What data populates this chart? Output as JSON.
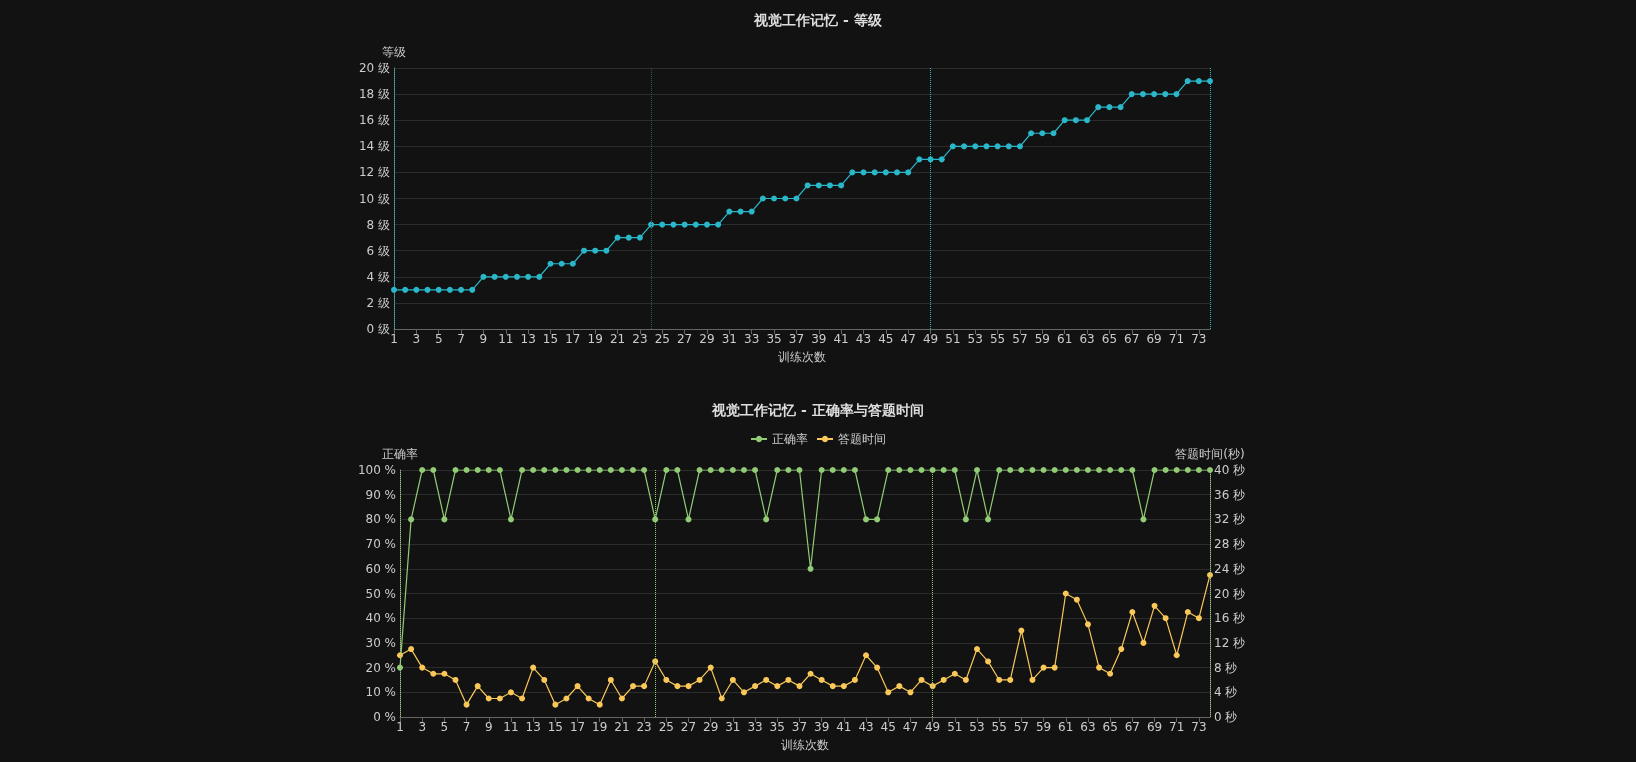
{
  "chart_data": [
    {
      "type": "line",
      "title": "视觉工作记忆 - 等级",
      "xlabel": "训练次数",
      "ylabel": "等级",
      "x": [
        1,
        2,
        3,
        4,
        5,
        6,
        7,
        8,
        9,
        10,
        11,
        12,
        13,
        14,
        15,
        16,
        17,
        18,
        19,
        20,
        21,
        22,
        23,
        24,
        25,
        26,
        27,
        28,
        29,
        30,
        31,
        32,
        33,
        34,
        35,
        36,
        37,
        38,
        39,
        40,
        41,
        42,
        43,
        44,
        45,
        46,
        47,
        48,
        49,
        50,
        51,
        52,
        53,
        54,
        55,
        56,
        57,
        58,
        59,
        60,
        61,
        62,
        63,
        64,
        65,
        66,
        67,
        68,
        69,
        70,
        71,
        72,
        73,
        74
      ],
      "series": [
        {
          "color": "#2ab7c9",
          "values": [
            3,
            3,
            3,
            3,
            3,
            3,
            3,
            3,
            4,
            4,
            4,
            4,
            4,
            4,
            5,
            5,
            5,
            6,
            6,
            6,
            7,
            7,
            7,
            8,
            8,
            8,
            8,
            8,
            8,
            8,
            9,
            9,
            9,
            10,
            10,
            10,
            10,
            11,
            11,
            11,
            11,
            12,
            12,
            12,
            12,
            12,
            12,
            13,
            13,
            13,
            14,
            14,
            14,
            14,
            14,
            14,
            14,
            15,
            15,
            15,
            16,
            16,
            16,
            17,
            17,
            17,
            18,
            18,
            18,
            18,
            18,
            19,
            19,
            19
          ]
        }
      ],
      "xlim": [
        1,
        74
      ],
      "xticks": [
        1,
        3,
        5,
        7,
        9,
        11,
        13,
        15,
        17,
        19,
        21,
        23,
        25,
        27,
        29,
        31,
        33,
        35,
        37,
        39,
        41,
        43,
        45,
        47,
        49,
        51,
        53,
        55,
        57,
        59,
        61,
        63,
        65,
        67,
        69,
        71,
        73
      ],
      "ylim": [
        0,
        20
      ],
      "yticks": [
        {
          "value": 0,
          "label": "0 级"
        },
        {
          "value": 2,
          "label": "2 级"
        },
        {
          "value": 4,
          "label": "4 级"
        },
        {
          "value": 6,
          "label": "6 级"
        },
        {
          "value": 8,
          "label": "8 级"
        },
        {
          "value": 10,
          "label": "10 级"
        },
        {
          "value": 12,
          "label": "12 级"
        },
        {
          "value": 14,
          "label": "14 级"
        },
        {
          "value": 16,
          "label": "16 级"
        },
        {
          "value": 18,
          "label": "18 级"
        },
        {
          "value": 20,
          "label": "20 级"
        }
      ],
      "ref_lines": [
        {
          "axis": "x",
          "value": 1,
          "color": "#2ab7c9",
          "line_style": "dotted"
        },
        {
          "axis": "x",
          "value": 24,
          "color": "#2a5a5a",
          "line_style": "dotted"
        },
        {
          "axis": "x",
          "value": 49,
          "color": "#2ab7c9",
          "line_style": "dotted"
        },
        {
          "axis": "x",
          "value": 74,
          "color": "#2ab7c9",
          "line_style": "dotted"
        }
      ],
      "grid": "y",
      "marker": "circle",
      "line_style": "solid",
      "legend": false
    },
    {
      "type": "line",
      "title": "视觉工作记忆 - 正确率与答题时间",
      "xlabel": "训练次数",
      "ylabel": "正确率",
      "y2label": "答题时间(秒)",
      "x": [
        1,
        2,
        3,
        4,
        5,
        6,
        7,
        8,
        9,
        10,
        11,
        12,
        13,
        14,
        15,
        16,
        17,
        18,
        19,
        20,
        21,
        22,
        23,
        24,
        25,
        26,
        27,
        28,
        29,
        30,
        31,
        32,
        33,
        34,
        35,
        36,
        37,
        38,
        39,
        40,
        41,
        42,
        43,
        44,
        45,
        46,
        47,
        48,
        49,
        50,
        51,
        52,
        53,
        54,
        55,
        56,
        57,
        58,
        59,
        60,
        61,
        62,
        63,
        64,
        65,
        66,
        67,
        68,
        69,
        70,
        71,
        72,
        73,
        74
      ],
      "series": [
        {
          "name": "正确率",
          "color": "#91cc75",
          "values": [
            20,
            80,
            100,
            100,
            80,
            100,
            100,
            100,
            100,
            100,
            80,
            100,
            100,
            100,
            100,
            100,
            100,
            100,
            100,
            100,
            100,
            100,
            100,
            80,
            100,
            100,
            80,
            100,
            100,
            100,
            100,
            100,
            100,
            80,
            100,
            100,
            100,
            60,
            100,
            100,
            100,
            100,
            80,
            80,
            100,
            100,
            100,
            100,
            100,
            100,
            100,
            80,
            100,
            80,
            100,
            100,
            100,
            100,
            100,
            100,
            100,
            100,
            100,
            100,
            100,
            100,
            100,
            80,
            100,
            100,
            100,
            100,
            100,
            100
          ]
        },
        {
          "name": "答题时间",
          "color": "#fac858",
          "axis": "y2",
          "values": [
            10,
            11,
            8,
            7,
            7,
            6,
            2,
            5,
            3,
            3,
            4,
            3,
            8,
            6,
            2,
            3,
            5,
            3,
            2,
            6,
            3,
            5,
            5,
            9,
            6,
            5,
            5,
            6,
            8,
            3,
            6,
            4,
            5,
            6,
            5,
            6,
            5,
            7,
            6,
            5,
            5,
            6,
            10,
            8,
            4,
            5,
            4,
            6,
            5,
            6,
            7,
            6,
            11,
            9,
            6,
            6,
            14,
            6,
            8,
            8,
            20,
            19,
            15,
            8,
            7,
            11,
            17,
            12,
            18,
            16,
            10,
            17,
            16,
            23
          ]
        }
      ],
      "xlim": [
        1,
        74
      ],
      "xticks": [
        1,
        3,
        5,
        7,
        9,
        11,
        13,
        15,
        17,
        19,
        21,
        23,
        25,
        27,
        29,
        31,
        33,
        35,
        37,
        39,
        41,
        43,
        45,
        47,
        49,
        51,
        53,
        55,
        57,
        59,
        61,
        63,
        65,
        67,
        69,
        71,
        73
      ],
      "ylim": [
        0,
        100
      ],
      "yticks": [
        {
          "value": 0,
          "label": "0 %"
        },
        {
          "value": 10,
          "label": "10 %"
        },
        {
          "value": 20,
          "label": "20 %"
        },
        {
          "value": 30,
          "label": "30 %"
        },
        {
          "value": 40,
          "label": "40 %"
        },
        {
          "value": 50,
          "label": "50 %"
        },
        {
          "value": 60,
          "label": "60 %"
        },
        {
          "value": 70,
          "label": "70 %"
        },
        {
          "value": 80,
          "label": "80 %"
        },
        {
          "value": 90,
          "label": "90 %"
        },
        {
          "value": 100,
          "label": "100 %"
        }
      ],
      "y2lim": [
        0,
        40
      ],
      "y2ticks": [
        {
          "value": 0,
          "label": "0 秒"
        },
        {
          "value": 4,
          "label": "4 秒"
        },
        {
          "value": 8,
          "label": "8 秒"
        },
        {
          "value": 12,
          "label": "12 秒"
        },
        {
          "value": 16,
          "label": "16 秒"
        },
        {
          "value": 20,
          "label": "20 秒"
        },
        {
          "value": 24,
          "label": "24 秒"
        },
        {
          "value": 28,
          "label": "28 秒"
        },
        {
          "value": 32,
          "label": "32 秒"
        },
        {
          "value": 36,
          "label": "36 秒"
        },
        {
          "value": 40,
          "label": "40 秒"
        }
      ],
      "ref_lines": [
        {
          "axis": "x",
          "value": 1,
          "color": "#91cc75",
          "line_style": "dotted"
        },
        {
          "axis": "x",
          "value": 24,
          "color": "#91cc75",
          "line_style": "dotted"
        },
        {
          "axis": "x",
          "value": 49,
          "color": "#91cc75",
          "line_style": "dotted"
        },
        {
          "axis": "x",
          "value": 74,
          "color": "#91cc75",
          "line_style": "dotted"
        }
      ],
      "grid": "y",
      "marker": "circle",
      "line_style": "solid",
      "legend": "top"
    }
  ]
}
